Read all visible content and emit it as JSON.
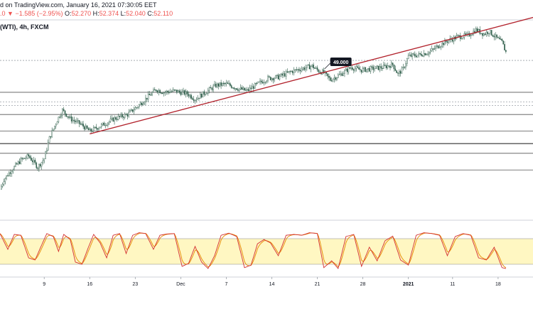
{
  "header": {
    "published": "d on TradingView.com, January 16, 2021 07:30:05 EET",
    "ohlc_prefix": ".0",
    "change": "−1.585 (−2.95%)",
    "open_label": "O:",
    "open": "52.270",
    "high_label": "H:",
    "high": "52.374",
    "low_label": "L:",
    "low": "52.040",
    "close_label": "C:",
    "close": "52.110",
    "symbol": "(WTI), 4h, FXCM"
  },
  "colors": {
    "up": "#26a69a",
    "down": "#ef5350",
    "candle_body": "#2e5e4a",
    "trendline": "#b2222c",
    "stoch_k": "#d32f2f",
    "stoch_d": "#e68a00",
    "stoch_band": "#fff7c2",
    "hline": "#555555",
    "axis_text": "#131722"
  },
  "chart_data": {
    "type": "candlestick",
    "timeframe": "4h",
    "ylim": [
      41.0,
      53.5
    ],
    "x_ticks": [
      {
        "label": "9",
        "bar": 34
      },
      {
        "label": "16",
        "bar": 69
      },
      {
        "label": "23",
        "bar": 104
      },
      {
        "label": "Dec",
        "bar": 139
      },
      {
        "label": "7",
        "bar": 174
      },
      {
        "label": "14",
        "bar": 209
      },
      {
        "label": "21",
        "bar": 244
      },
      {
        "label": "28",
        "bar": 279
      },
      {
        "label": "2021",
        "bar": 314,
        "bold": true
      },
      {
        "label": "11",
        "bar": 348
      },
      {
        "label": "18",
        "bar": 383
      }
    ],
    "price_anchors": [
      [
        0,
        42.2
      ],
      [
        3,
        42.9
      ],
      [
        8,
        43.5
      ],
      [
        16,
        44.3
      ],
      [
        22,
        44.6
      ],
      [
        29,
        43.8
      ],
      [
        34,
        44.4
      ],
      [
        38,
        45.9
      ],
      [
        44,
        47.2
      ],
      [
        48,
        47.9
      ],
      [
        54,
        47.3
      ],
      [
        62,
        46.9
      ],
      [
        69,
        46.4
      ],
      [
        78,
        46.8
      ],
      [
        88,
        47.3
      ],
      [
        98,
        47.6
      ],
      [
        106,
        48.2
      ],
      [
        114,
        48.9
      ],
      [
        120,
        49.4
      ],
      [
        126,
        49.2
      ],
      [
        134,
        49.3
      ],
      [
        144,
        49.1
      ],
      [
        150,
        48.7
      ],
      [
        158,
        49.2
      ],
      [
        166,
        49.7
      ],
      [
        174,
        49.8
      ],
      [
        182,
        49.5
      ],
      [
        190,
        49.3
      ],
      [
        198,
        49.8
      ],
      [
        206,
        50.2
      ],
      [
        214,
        50.3
      ],
      [
        224,
        50.7
      ],
      [
        232,
        50.9
      ],
      [
        240,
        51.1
      ],
      [
        244,
        50.8
      ],
      [
        249,
        50.6
      ],
      [
        254,
        50.1
      ],
      [
        262,
        50.5
      ],
      [
        270,
        51.0
      ],
      [
        278,
        50.8
      ],
      [
        286,
        50.9
      ],
      [
        294,
        51.0
      ],
      [
        302,
        51.2
      ],
      [
        306,
        50.5
      ],
      [
        310,
        50.9
      ],
      [
        314,
        51.8
      ],
      [
        322,
        51.9
      ],
      [
        330,
        52.1
      ],
      [
        338,
        52.6
      ],
      [
        344,
        52.9
      ],
      [
        352,
        53.2
      ],
      [
        360,
        53.3
      ],
      [
        366,
        53.7
      ],
      [
        372,
        53.4
      ],
      [
        376,
        53.6
      ],
      [
        382,
        53.1
      ],
      [
        386,
        52.8
      ],
      [
        389,
        52.1
      ]
    ],
    "trendline": {
      "start": {
        "bar": 69,
        "price": 46.2
      },
      "end": {
        "bar": 410,
        "price": 54.6
      }
    },
    "horizontal_lines": [
      {
        "price": 51.5,
        "style": "dotted"
      },
      {
        "price": 49.2,
        "style": "solid"
      },
      {
        "price": 48.5,
        "style": "dotted"
      },
      {
        "price": 48.25,
        "style": "dotted"
      },
      {
        "price": 47.6,
        "style": "solid"
      },
      {
        "price": 46.4,
        "style": "solid"
      },
      {
        "price": 45.5,
        "style": "solid_bold"
      },
      {
        "price": 44.8,
        "style": "solid"
      },
      {
        "price": 43.6,
        "style": "solid"
      }
    ],
    "callout": {
      "label": "49.000",
      "bar": 255,
      "price": 51.4
    },
    "stochastic": {
      "ylim": [
        0,
        100
      ],
      "band": [
        20,
        80
      ],
      "k_anchors": [
        [
          0,
          92
        ],
        [
          6,
          55
        ],
        [
          11,
          90
        ],
        [
          16,
          88
        ],
        [
          22,
          35
        ],
        [
          27,
          30
        ],
        [
          32,
          65
        ],
        [
          36,
          92
        ],
        [
          41,
          85
        ],
        [
          45,
          50
        ],
        [
          49,
          90
        ],
        [
          54,
          78
        ],
        [
          58,
          25
        ],
        [
          63,
          20
        ],
        [
          68,
          60
        ],
        [
          72,
          90
        ],
        [
          77,
          70
        ],
        [
          82,
          35
        ],
        [
          87,
          88
        ],
        [
          92,
          92
        ],
        [
          97,
          45
        ],
        [
          102,
          88
        ],
        [
          107,
          94
        ],
        [
          112,
          92
        ],
        [
          118,
          55
        ],
        [
          123,
          88
        ],
        [
          128,
          91
        ],
        [
          134,
          92
        ],
        [
          140,
          15
        ],
        [
          145,
          22
        ],
        [
          150,
          62
        ],
        [
          155,
          25
        ],
        [
          160,
          10
        ],
        [
          165,
          40
        ],
        [
          170,
          88
        ],
        [
          176,
          93
        ],
        [
          182,
          85
        ],
        [
          188,
          12
        ],
        [
          193,
          18
        ],
        [
          198,
          68
        ],
        [
          203,
          78
        ],
        [
          208,
          70
        ],
        [
          214,
          40
        ],
        [
          220,
          88
        ],
        [
          226,
          90
        ],
        [
          232,
          88
        ],
        [
          238,
          94
        ],
        [
          244,
          92
        ],
        [
          249,
          12
        ],
        [
          255,
          28
        ],
        [
          260,
          10
        ],
        [
          266,
          85
        ],
        [
          272,
          90
        ],
        [
          278,
          15
        ],
        [
          284,
          60
        ],
        [
          290,
          28
        ],
        [
          296,
          75
        ],
        [
          302,
          86
        ],
        [
          308,
          30
        ],
        [
          314,
          18
        ],
        [
          320,
          88
        ],
        [
          326,
          94
        ],
        [
          332,
          92
        ],
        [
          338,
          88
        ],
        [
          344,
          40
        ],
        [
          350,
          85
        ],
        [
          356,
          92
        ],
        [
          362,
          88
        ],
        [
          368,
          35
        ],
        [
          374,
          30
        ],
        [
          380,
          60
        ],
        [
          386,
          12
        ],
        [
          389,
          10
        ]
      ]
    }
  }
}
